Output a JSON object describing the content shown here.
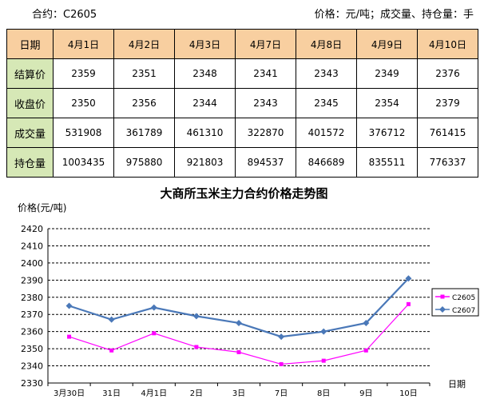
{
  "header": {
    "contract": "合约：C2605",
    "units": "价格：元/吨；成交量、持仓量：手"
  },
  "table": {
    "corner": "日期",
    "dates": [
      "4月1日",
      "4月2日",
      "4月3日",
      "4月7日",
      "4月8日",
      "4月9日",
      "4月10日"
    ],
    "rows": [
      {
        "label": "结算价",
        "values": [
          "2359",
          "2351",
          "2348",
          "2341",
          "2343",
          "2349",
          "2376"
        ]
      },
      {
        "label": "收盘价",
        "values": [
          "2350",
          "2356",
          "2344",
          "2343",
          "2345",
          "2354",
          "2379"
        ]
      },
      {
        "label": "成交量",
        "values": [
          "531908",
          "361789",
          "461310",
          "322870",
          "401572",
          "376712",
          "761415"
        ]
      },
      {
        "label": "持仓量",
        "values": [
          "1003435",
          "975880",
          "921803",
          "894537",
          "846689",
          "835511",
          "776337"
        ]
      }
    ]
  },
  "chart_data": {
    "type": "line",
    "title": "大商所玉米主力合约价格走势图",
    "ylabel": "价格(元/吨)",
    "xlabel": "日期",
    "categories": [
      "3月30日",
      "31日",
      "4月1日",
      "2日",
      "3日",
      "7日",
      "8日",
      "9日",
      "10日"
    ],
    "ylim": [
      2330,
      2420
    ],
    "yticks": [
      2330,
      2340,
      2350,
      2360,
      2370,
      2380,
      2390,
      2400,
      2410,
      2420
    ],
    "grid": true,
    "legend": "right",
    "series": [
      {
        "name": "C2605",
        "color": "#ff00ff",
        "marker": "square",
        "values": [
          2357,
          2349,
          2359,
          2351,
          2348,
          2341,
          2343,
          2349,
          2376
        ]
      },
      {
        "name": "C2607",
        "color": "#4a78b8",
        "marker": "diamond",
        "values": [
          2375,
          2367,
          2374,
          2369,
          2365,
          2357,
          2360,
          2365,
          2391
        ]
      }
    ]
  }
}
